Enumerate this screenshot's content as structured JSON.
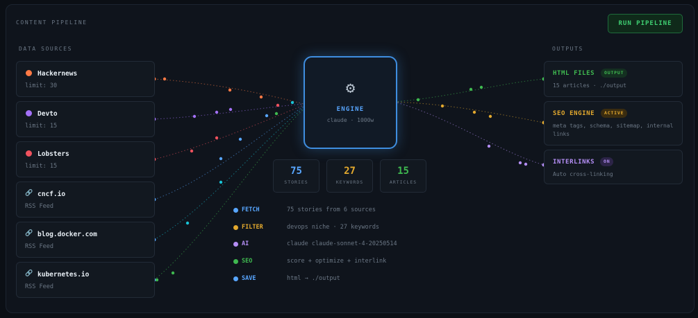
{
  "header": {
    "title": "CONTENT PIPELINE",
    "run_label": "RUN PIPELINE"
  },
  "sources": {
    "title": "DATA SOURCES",
    "items": [
      {
        "name": "Hackernews",
        "sub": "limit: 30",
        "icon": "dot",
        "color": "#ff7a45"
      },
      {
        "name": "Devto",
        "sub": "limit: 15",
        "icon": "dot",
        "color": "#a371f7"
      },
      {
        "name": "Lobsters",
        "sub": "limit: 15",
        "icon": "dot",
        "color": "#f0525e"
      },
      {
        "name": "cncf.io",
        "sub": "RSS Feed",
        "icon": "link-icon",
        "color": "#58a6ff"
      },
      {
        "name": "blog.docker.com",
        "sub": "RSS Feed",
        "icon": "link-icon",
        "color": "#58a6ff"
      },
      {
        "name": "kubernetes.io",
        "sub": "RSS Feed",
        "icon": "link-icon",
        "color": "#58a6ff"
      }
    ]
  },
  "engine": {
    "icon": "gear-icon",
    "title": "ENGINE",
    "subtitle": "claude · 1000w"
  },
  "stats": [
    {
      "value": "75",
      "label": "STORIES",
      "color": "#58a6ff"
    },
    {
      "value": "27",
      "label": "KEYWORDS",
      "color": "#e3a92e"
    },
    {
      "value": "15",
      "label": "ARTICLES",
      "color": "#3fb950"
    }
  ],
  "steps": [
    {
      "label": "FETCH",
      "desc": "75 stories from 6 sources",
      "color": "#58a6ff"
    },
    {
      "label": "FILTER",
      "desc": "devops niche · 27 keywords",
      "color": "#e3a92e"
    },
    {
      "label": "AI",
      "desc": "claude claude-sonnet-4-20250514",
      "color": "#b48ef5"
    },
    {
      "label": "SEO",
      "desc": "score + optimize + interlink",
      "color": "#3fb950"
    },
    {
      "label": "SAVE",
      "desc": "html → ./output",
      "color": "#58a6ff"
    }
  ],
  "outputs": {
    "title": "OUTPUTS",
    "items": [
      {
        "title": "HTML FILES",
        "badge": "OUTPUT",
        "desc": "15 articles · ./output",
        "color": "#3fb950",
        "badge_bg": "#143021"
      },
      {
        "title": "SEO ENGINE",
        "badge": "ACTIVE",
        "desc": "meta tags, schema, sitemap, internal links",
        "color": "#e3a92e",
        "badge_bg": "#3a2c10"
      },
      {
        "title": "INTERLINKS",
        "badge": "ON",
        "desc": "Auto cross-linking",
        "color": "#b48ef5",
        "badge_bg": "#2c2447"
      }
    ]
  }
}
